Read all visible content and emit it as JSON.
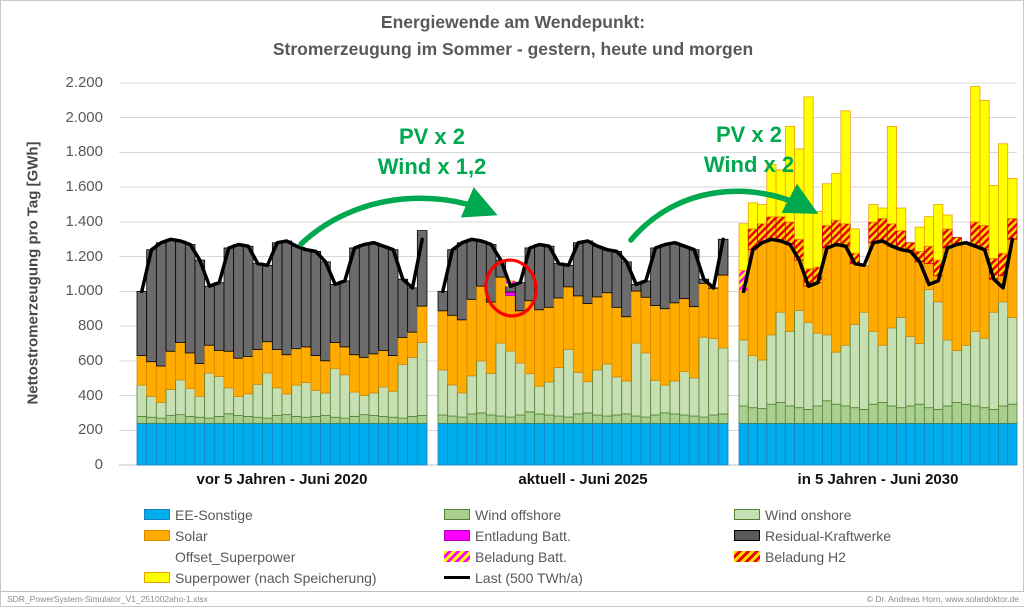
{
  "title": {
    "line1": "Energiewende am Wendepunkt:",
    "line2": "Stromerzeugung im Sommer - gestern, heute und morgen"
  },
  "y_axis": {
    "label": "Nettostromerzeugung  pro Tag [GWh]",
    "tick_labels": [
      "2.200",
      "2.000",
      "1.800",
      "1.600",
      "1.400",
      "1.200",
      "1.000",
      "800",
      "600",
      "400",
      "200",
      "0"
    ],
    "tick_values": [
      2200,
      2000,
      1800,
      1600,
      1400,
      1200,
      1000,
      800,
      600,
      400,
      200,
      0
    ]
  },
  "x_axis": {
    "group_labels": [
      "vor 5 Jahren - Juni 2020",
      "aktuell - Juni 2025",
      "in 5 Jahren - Juni 2030"
    ]
  },
  "annotations": {
    "arrow1": {
      "line1": "PV x 2",
      "line2": "Wind x 1,2"
    },
    "arrow2": {
      "line1": "PV x 2",
      "line2": "Wind x 2"
    },
    "text_color": "#00A94F",
    "circle_color": "#FF0000"
  },
  "legend": {
    "columns": [
      [
        {
          "label": "EE-Sonstige",
          "swatch": "solid",
          "key": "ee"
        },
        {
          "label": "Solar",
          "swatch": "solid",
          "key": "solar"
        },
        {
          "label": "Offset_Superpower",
          "swatch": "none",
          "key": "offset_superpower"
        },
        {
          "label": "Superpower (nach Speicherung)",
          "swatch": "solid",
          "key": "superpower"
        }
      ],
      [
        {
          "label": "Wind offshore",
          "swatch": "solid",
          "key": "offshore"
        },
        {
          "label": "Entladung Batt.",
          "swatch": "solid",
          "key": "entladung"
        },
        {
          "label": "Beladung Batt.",
          "swatch": "hatch_batt",
          "key": "beladung_batt"
        },
        {
          "label": "Last  (500 TWh/a)",
          "swatch": "line",
          "key": "last"
        }
      ],
      [
        {
          "label": "Wind onshore",
          "swatch": "solid",
          "key": "onshore"
        },
        {
          "label": "Residual-Kraftwerke",
          "swatch": "solid",
          "key": "residual"
        },
        {
          "label": "Beladung H2",
          "swatch": "hatch_h2",
          "key": "beladung_h2"
        }
      ]
    ]
  },
  "footer": {
    "left": "SDR_PowerSystem-Simulator_V1_251002aho-1.xlsx",
    "right": "© Dr. Andreas  Horn, www.solardoktor.de"
  },
  "colors": {
    "grid": "#D9D9D9",
    "axis_line": "#BFBFBF",
    "title_text": "#595959",
    "series": {
      "ee": {
        "fill": "#00AEEF",
        "stroke": "#1E7FC0"
      },
      "offshore": {
        "fill": "#A9D08E",
        "stroke": "#548235"
      },
      "onshore": {
        "fill": "#C6E0B4",
        "stroke": "#548235"
      },
      "solar": {
        "fill": "#FFAB00",
        "stroke": "#D88A00"
      },
      "entladung": {
        "fill": "#FF00FF",
        "stroke": "#B000B0"
      },
      "residual": {
        "fill": "#6B6B6B",
        "stroke": "#000000"
      },
      "beladung_batt": {
        "fill": "pattern_batt",
        "stroke": "#FFA000"
      },
      "beladung_h2": {
        "fill": "pattern_h2",
        "stroke": "#D00000"
      },
      "superpower": {
        "fill": "#FFFF00",
        "stroke": "#F0A000"
      },
      "last": {
        "fill": "#000000",
        "stroke": "#000000"
      },
      "offset_superpower": {
        "fill": "none",
        "stroke": "none"
      }
    },
    "hatch_batt": {
      "bg": "#FFFF00",
      "stripe": "#FF00FF"
    },
    "hatch_h2": {
      "bg": "#FFD800",
      "stripe": "#E30000"
    }
  },
  "chart_data": {
    "type": "bar",
    "stacked": true,
    "unit": "GWh",
    "ylim": [
      0,
      2200
    ],
    "grid": true,
    "series_order": [
      "ee",
      "offshore",
      "onshore",
      "solar",
      "entladung",
      "residual",
      "beladung_batt",
      "beladung_h2",
      "superpower"
    ],
    "series_labels": {
      "ee": "EE-Sonstige",
      "offshore": "Wind offshore",
      "onshore": "Wind onshore",
      "solar": "Solar",
      "entladung": "Entladung Batt.",
      "residual": "Residual-Kraftwerke",
      "beladung_batt": "Beladung Batt.",
      "beladung_h2": "Beladung H2",
      "superpower": "Superpower (nach Speicherung)"
    },
    "last_line": {
      "name": "Last  (500 TWh/a)",
      "values": [
        1000,
        1240,
        1280,
        1300,
        1290,
        1270,
        1180,
        1030,
        1050,
        1250,
        1270,
        1260,
        1160,
        1150,
        1280,
        1290,
        1260,
        1240,
        1230,
        1170,
        1040,
        1060,
        1250,
        1270,
        1280,
        1260,
        1240,
        1070,
        1020,
        1300
      ]
    },
    "groups": [
      {
        "label": "vor 5 Jahren - Juni 2020",
        "series": {
          "ee": 240,
          "offshore": [
            40,
            35,
            30,
            45,
            50,
            40,
            35,
            30,
            40,
            55,
            45,
            40,
            35,
            30,
            45,
            50,
            40,
            35,
            40,
            45,
            35,
            30,
            40,
            50,
            45,
            40,
            35,
            30,
            40,
            45
          ],
          "onshore": [
            180,
            120,
            90,
            150,
            200,
            160,
            120,
            260,
            230,
            150,
            110,
            130,
            190,
            260,
            160,
            120,
            180,
            200,
            150,
            130,
            280,
            250,
            140,
            110,
            130,
            170,
            150,
            310,
            340,
            420
          ],
          "solar": [
            170,
            200,
            210,
            220,
            215,
            205,
            190,
            160,
            150,
            210,
            220,
            215,
            200,
            180,
            220,
            225,
            210,
            205,
            200,
            185,
            150,
            160,
            215,
            220,
            225,
            210,
            205,
            155,
            145,
            210
          ],
          "entladung": 0,
          "residual": [
            370,
            645,
            710,
            645,
            585,
            625,
            595,
            340,
            390,
            595,
            655,
            635,
            495,
            440,
            615,
            655,
            590,
            560,
            600,
            570,
            335,
            380,
            615,
            650,
            640,
            600,
            610,
            335,
            255,
            435
          ],
          "beladung_batt": 0,
          "beladung_h2": 0,
          "superpower": 0
        }
      },
      {
        "label": "aktuell - Juni 2025",
        "series": {
          "ee": 240,
          "offshore": [
            48,
            42,
            36,
            54,
            60,
            48,
            42,
            36,
            48,
            66,
            54,
            48,
            42,
            36,
            54,
            60,
            48,
            42,
            48,
            54,
            42,
            36,
            48,
            60,
            54,
            48,
            42,
            36,
            48,
            54
          ],
          "onshore": [
            260,
            180,
            140,
            220,
            300,
            240,
            420,
            380,
            300,
            220,
            160,
            190,
            280,
            390,
            240,
            180,
            260,
            300,
            220,
            190,
            420,
            370,
            200,
            160,
            190,
            250,
            220,
            460,
            440,
            380
          ],
          "solar": [
            340,
            400,
            420,
            440,
            430,
            410,
            380,
            320,
            300,
            420,
            440,
            430,
            400,
            360,
            440,
            450,
            420,
            410,
            400,
            370,
            300,
            320,
            430,
            440,
            450,
            420,
            410,
            310,
            290,
            420
          ],
          "entladung": [
            0,
            0,
            0,
            0,
            0,
            0,
            0,
            20,
            0,
            0,
            0,
            0,
            0,
            0,
            0,
            0,
            0,
            0,
            0,
            0,
            0,
            0,
            0,
            0,
            0,
            0,
            0,
            0,
            0,
            0
          ],
          "residual": [
            112,
            378,
            444,
            346,
            260,
            332,
            98,
            34,
            162,
            304,
            376,
            352,
            198,
            124,
            306,
            360,
            292,
            248,
            322,
            316,
            38,
            94,
            332,
            370,
            346,
            302,
            328,
            24,
            2,
            206
          ],
          "beladung_batt": [
            0,
            0,
            0,
            0,
            0,
            0,
            0,
            30,
            0,
            0,
            0,
            0,
            0,
            0,
            0,
            0,
            0,
            0,
            0,
            0,
            0,
            0,
            0,
            0,
            0,
            0,
            0,
            0,
            0,
            0
          ],
          "beladung_h2": 0,
          "superpower": 0
        }
      },
      {
        "label": "in 5 Jahren - Juni 2030",
        "series": {
          "ee": 240,
          "offshore": [
            100,
            90,
            85,
            110,
            120,
            100,
            90,
            80,
            100,
            130,
            110,
            100,
            90,
            80,
            110,
            120,
            100,
            90,
            100,
            110,
            90,
            80,
            100,
            120,
            110,
            100,
            90,
            80,
            100,
            110
          ],
          "onshore": [
            380,
            300,
            280,
            400,
            520,
            430,
            560,
            500,
            420,
            380,
            300,
            350,
            480,
            560,
            420,
            330,
            450,
            520,
            400,
            350,
            680,
            620,
            380,
            300,
            340,
            430,
            400,
            560,
            600,
            500
          ],
          "solar": [
            280,
            610,
            675,
            550,
            410,
            500,
            290,
            210,
            290,
            500,
            620,
            570,
            350,
            270,
            510,
            600,
            470,
            390,
            490,
            470,
            150,
            150,
            530,
            610,
            590,
            490,
            510,
            190,
            150,
            450
          ],
          "entladung": 0,
          "residual": 0,
          "beladung_batt": [
            120,
            0,
            0,
            0,
            0,
            0,
            0,
            0,
            0,
            0,
            0,
            0,
            0,
            0,
            0,
            0,
            0,
            0,
            0,
            0,
            0,
            0,
            0,
            0,
            0,
            0,
            0,
            0,
            0,
            0
          ],
          "beladung_h2": [
            0,
            120,
            110,
            130,
            140,
            130,
            120,
            100,
            90,
            130,
            140,
            130,
            60,
            0,
            120,
            130,
            130,
            110,
            50,
            60,
            100,
            90,
            110,
            40,
            0,
            140,
            140,
            120,
            130,
            120
          ],
          "superpower": [
            270,
            150,
            110,
            300,
            270,
            550,
            520,
            990,
            320,
            240,
            270,
            650,
            140,
            0,
            100,
            60,
            560,
            130,
            0,
            140,
            170,
            320,
            80,
            0,
            0,
            780,
            720,
            420,
            630,
            230
          ]
        }
      }
    ]
  }
}
